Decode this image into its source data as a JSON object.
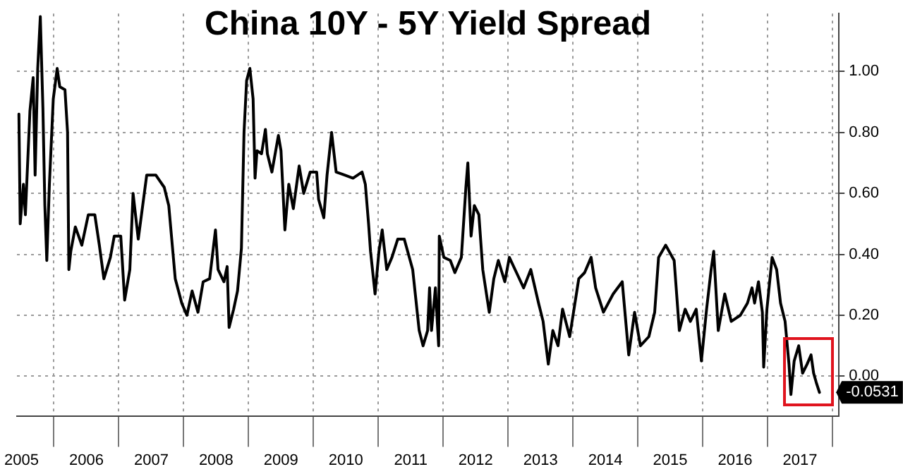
{
  "chart_data": {
    "type": "line",
    "title": "China 10Y - 5Y Yield Spread",
    "x": [
      2005.46,
      2005.48,
      2005.53,
      2005.56,
      2005.63,
      2005.68,
      2005.71,
      2005.75,
      2005.79,
      2005.83,
      2005.86,
      2005.89,
      2005.93,
      2005.96,
      2005.99,
      2006.05,
      2006.09,
      2006.17,
      2006.21,
      2006.23,
      2006.26,
      2006.33,
      2006.43,
      2006.53,
      2006.63,
      2006.7,
      2006.77,
      2006.87,
      2006.93,
      2007.03,
      2007.09,
      2007.17,
      2007.22,
      2007.3,
      2007.43,
      2007.57,
      2007.7,
      2007.77,
      2007.87,
      2007.97,
      2008.05,
      2008.13,
      2008.22,
      2008.3,
      2008.4,
      2008.49,
      2008.53,
      2008.62,
      2008.67,
      2008.7,
      2008.77,
      2008.83,
      2008.89,
      2008.93,
      2008.97,
      2009.02,
      2009.07,
      2009.1,
      2009.13,
      2009.2,
      2009.26,
      2009.29,
      2009.36,
      2009.46,
      2009.5,
      2009.56,
      2009.62,
      2009.69,
      2009.78,
      2009.85,
      2009.95,
      2010.05,
      2010.08,
      2010.16,
      2010.21,
      2010.28,
      2010.35,
      2010.48,
      2010.61,
      2010.75,
      2010.8,
      2010.85,
      2010.88,
      2010.95,
      2011.01,
      2011.06,
      2011.13,
      2011.21,
      2011.3,
      2011.4,
      2011.53,
      2011.6,
      2011.63,
      2011.69,
      2011.76,
      2011.79,
      2011.82,
      2011.88,
      2011.93,
      2011.94,
      2012.01,
      2012.11,
      2012.18,
      2012.28,
      2012.35,
      2012.38,
      2012.43,
      2012.48,
      2012.55,
      2012.61,
      2012.71,
      2012.78,
      2012.85,
      2012.95,
      2013.02,
      2013.13,
      2013.24,
      2013.35,
      2013.47,
      2013.54,
      2013.62,
      2013.69,
      2013.77,
      2013.84,
      2013.95,
      2014.09,
      2014.18,
      2014.28,
      2014.35,
      2014.47,
      2014.62,
      2014.76,
      2014.86,
      2014.95,
      2015.04,
      2015.17,
      2015.26,
      2015.32,
      2015.43,
      2015.56,
      2015.64,
      2015.73,
      2015.81,
      2015.9,
      2015.98,
      2016.06,
      2016.13,
      2016.17,
      2016.24,
      2016.34,
      2016.44,
      2016.58,
      2016.69,
      2016.76,
      2016.8,
      2016.86,
      2016.92,
      2016.94,
      2016.99,
      2017.07,
      2017.14,
      2017.2,
      2017.27,
      2017.33,
      2017.36,
      2017.41,
      2017.48,
      2017.54,
      2017.61,
      2017.67,
      2017.71,
      2017.75,
      2017.8
    ],
    "series": [
      {
        "color": "#000000",
        "values": [
          0.86,
          0.5,
          0.63,
          0.53,
          0.87,
          0.98,
          0.66,
          1.01,
          1.18,
          0.88,
          0.56,
          0.38,
          0.63,
          0.77,
          0.91,
          1.01,
          0.95,
          0.94,
          0.8,
          0.35,
          0.41,
          0.49,
          0.43,
          0.53,
          0.53,
          0.43,
          0.32,
          0.39,
          0.46,
          0.46,
          0.25,
          0.35,
          0.6,
          0.45,
          0.66,
          0.66,
          0.62,
          0.56,
          0.32,
          0.24,
          0.2,
          0.28,
          0.21,
          0.31,
          0.32,
          0.48,
          0.35,
          0.31,
          0.36,
          0.16,
          0.22,
          0.28,
          0.42,
          0.8,
          0.97,
          1.01,
          0.91,
          0.65,
          0.74,
          0.73,
          0.81,
          0.73,
          0.67,
          0.79,
          0.74,
          0.48,
          0.63,
          0.55,
          0.69,
          0.6,
          0.67,
          0.67,
          0.58,
          0.52,
          0.66,
          0.8,
          0.67,
          0.66,
          0.65,
          0.67,
          0.63,
          0.5,
          0.41,
          0.27,
          0.41,
          0.48,
          0.35,
          0.39,
          0.45,
          0.45,
          0.35,
          0.21,
          0.15,
          0.1,
          0.15,
          0.29,
          0.15,
          0.29,
          0.1,
          0.46,
          0.39,
          0.38,
          0.34,
          0.39,
          0.62,
          0.7,
          0.46,
          0.56,
          0.53,
          0.35,
          0.21,
          0.32,
          0.38,
          0.31,
          0.39,
          0.34,
          0.29,
          0.35,
          0.24,
          0.18,
          0.04,
          0.15,
          0.1,
          0.22,
          0.13,
          0.32,
          0.34,
          0.39,
          0.29,
          0.21,
          0.27,
          0.31,
          0.07,
          0.21,
          0.1,
          0.13,
          0.21,
          0.39,
          0.43,
          0.38,
          0.15,
          0.22,
          0.18,
          0.22,
          0.05,
          0.22,
          0.35,
          0.41,
          0.15,
          0.27,
          0.18,
          0.2,
          0.24,
          0.29,
          0.24,
          0.31,
          0.21,
          0.03,
          0.22,
          0.39,
          0.35,
          0.24,
          0.18,
          0.04,
          -0.06,
          0.05,
          0.1,
          0.01,
          0.04,
          0.07,
          0.01,
          -0.02,
          -0.0531
        ]
      }
    ],
    "annotations": [
      {
        "text": "-0.0531",
        "x": 2017.8,
        "y": -0.0531
      }
    ],
    "xlim": [
      2005.43,
      2018.1
    ],
    "xticks": [
      {
        "value": 2005.5,
        "label": "2005"
      },
      {
        "value": 2006,
        "label": null
      },
      {
        "value": 2006.5,
        "label": "2006"
      },
      {
        "value": 2007,
        "label": null
      },
      {
        "value": 2007.5,
        "label": "2007"
      },
      {
        "value": 2008,
        "label": null
      },
      {
        "value": 2008.5,
        "label": "2008"
      },
      {
        "value": 2009,
        "label": null
      },
      {
        "value": 2009.5,
        "label": "2009"
      },
      {
        "value": 2010,
        "label": null
      },
      {
        "value": 2010.5,
        "label": "2010"
      },
      {
        "value": 2011,
        "label": null
      },
      {
        "value": 2011.5,
        "label": "2011"
      },
      {
        "value": 2012,
        "label": null
      },
      {
        "value": 2012.5,
        "label": "2012"
      },
      {
        "value": 2013,
        "label": null
      },
      {
        "value": 2013.5,
        "label": "2013"
      },
      {
        "value": 2014,
        "label": null
      },
      {
        "value": 2014.5,
        "label": "2014"
      },
      {
        "value": 2015,
        "label": null
      },
      {
        "value": 2015.5,
        "label": "2015"
      },
      {
        "value": 2016,
        "label": null
      },
      {
        "value": 2016.5,
        "label": "2016"
      },
      {
        "value": 2017,
        "label": null
      },
      {
        "value": 2017.5,
        "label": "2017"
      },
      {
        "value": 2018,
        "label": null
      }
    ],
    "ylim": [
      -0.13,
      1.19
    ],
    "yticks": [
      {
        "value": 0,
        "label": "0.00"
      },
      {
        "value": 0.2,
        "label": "0.20"
      },
      {
        "value": 0.4,
        "label": "0.40"
      },
      {
        "value": 0.6,
        "label": "0.60"
      },
      {
        "value": 0.8,
        "label": "0.80"
      },
      {
        "value": 1,
        "label": "1.00"
      }
    ],
    "grid": true,
    "marker": "none",
    "line_style": "solid"
  }
}
